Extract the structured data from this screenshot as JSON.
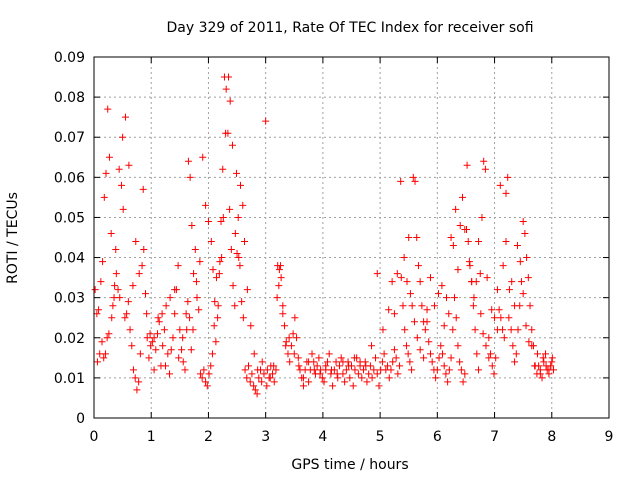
{
  "chart_data": {
    "type": "scatter",
    "title": "Day 329 of 2011, Rate Of TEC Index for receiver sofi",
    "xlabel": "GPS time / hours",
    "ylabel": "ROTI / TECUs",
    "xlim": [
      0,
      9
    ],
    "ylim": [
      0,
      0.09
    ],
    "x_ticks": [
      0,
      1,
      2,
      3,
      4,
      5,
      6,
      7,
      8,
      9
    ],
    "x_tick_labels": [
      "0",
      "1",
      "2",
      "3",
      "4",
      "5",
      "6",
      "7",
      "8",
      "9"
    ],
    "y_ticks": [
      0,
      0.01,
      0.02,
      0.03,
      0.04,
      0.05,
      0.06,
      0.07,
      0.08,
      0.09
    ],
    "y_tick_labels": [
      "0",
      "0.01",
      "0.02",
      "0.03",
      "0.04",
      "0.05",
      "0.06",
      "0.07",
      "0.08",
      "0.09"
    ],
    "grid": true,
    "marker": "plus",
    "series_color": "#ff0000",
    "series": [
      {
        "name": "ROTI",
        "x": [
          0.02,
          0.05,
          0.08,
          0.12,
          0.15,
          0.18,
          0.21,
          0.24,
          0.27,
          0.3,
          0.33,
          0.36,
          0.39,
          0.42,
          0.45,
          0.48,
          0.51,
          0.54,
          0.57,
          0.6,
          0.63,
          0.66,
          0.69,
          0.72,
          0.75,
          0.78,
          0.81,
          0.84,
          0.87,
          0.9,
          0.93,
          0.96,
          0.99,
          1.02,
          1.05,
          1.08,
          1.11,
          1.14,
          1.17,
          1.2,
          1.23,
          1.26,
          1.29,
          1.32,
          1.35,
          1.38,
          1.41,
          1.44,
          1.47,
          1.5,
          1.53,
          1.56,
          1.59,
          1.62,
          1.65,
          1.68,
          1.71,
          1.74,
          1.77,
          1.8,
          1.83,
          1.86,
          1.89,
          1.92,
          1.95,
          1.98,
          2.01,
          2.04,
          2.07,
          2.1,
          2.13,
          2.16,
          2.19,
          2.22,
          2.25,
          2.28,
          2.31,
          2.34,
          2.37,
          2.4,
          2.43,
          2.46,
          2.49,
          2.52,
          2.55,
          2.58,
          2.61,
          2.64,
          2.67,
          2.7,
          2.73,
          2.76,
          2.79,
          2.82,
          2.85,
          2.88,
          2.91,
          2.94,
          2.97,
          3.0,
          3.03,
          3.06,
          3.09,
          3.12,
          3.15,
          3.18,
          3.21,
          3.24,
          3.27,
          3.3,
          3.33,
          3.36,
          3.39,
          3.42,
          3.45,
          3.48,
          3.51,
          3.54,
          3.57,
          3.6,
          3.63,
          3.66,
          3.69,
          3.72,
          3.75,
          3.78,
          3.81,
          3.84,
          3.87,
          3.9,
          3.93,
          3.96,
          3.99,
          4.02,
          4.05,
          4.08,
          4.11,
          4.14,
          4.17,
          4.2,
          4.23,
          4.26,
          4.29,
          4.32,
          4.35,
          4.38,
          4.41,
          4.44,
          4.47,
          4.5,
          4.53,
          4.56,
          4.59,
          4.62,
          4.65,
          4.68,
          4.71,
          4.74,
          4.77,
          4.8,
          4.83,
          4.86,
          4.89,
          4.92,
          4.95,
          4.98,
          5.01,
          5.04,
          5.07,
          5.1,
          5.13,
          5.16,
          5.19,
          5.22,
          5.25,
          5.28,
          5.31,
          5.34,
          5.37,
          5.4,
          5.43,
          5.46,
          5.49,
          5.52,
          5.55,
          5.58,
          5.61,
          5.64,
          5.67,
          5.7,
          5.73,
          5.76,
          5.79,
          5.82,
          5.85,
          5.88,
          5.91,
          5.94,
          5.97,
          6.0,
          6.03,
          6.06,
          6.09,
          6.12,
          6.15,
          6.18,
          6.21,
          6.24,
          6.27,
          6.3,
          6.33,
          6.36,
          6.39,
          6.42,
          6.45,
          6.48,
          6.51,
          6.54,
          6.57,
          6.6,
          6.63,
          6.66,
          6.69,
          6.72,
          6.75,
          6.78,
          6.81,
          6.84,
          6.87,
          6.9,
          6.93,
          6.96,
          6.99,
          7.02,
          7.05,
          7.08,
          7.11,
          7.14,
          7.17,
          7.2,
          7.23,
          7.26,
          7.29,
          7.32,
          7.35,
          7.38,
          7.41,
          7.44,
          7.47,
          7.5,
          7.53,
          7.56,
          7.59,
          7.62,
          7.65,
          7.68,
          7.71,
          7.74,
          7.77,
          7.8,
          7.83,
          7.86,
          7.89,
          7.92,
          7.95,
          7.98,
          8.01,
          8.03,
          0.06,
          0.1,
          0.14,
          0.17,
          0.2,
          0.23,
          0.26,
          0.31,
          0.35,
          0.38,
          0.44,
          0.5,
          0.55,
          0.61,
          0.68,
          0.73,
          0.79,
          0.86,
          0.92,
          0.98,
          1.05,
          1.12,
          1.19,
          1.25,
          1.33,
          1.41,
          1.48,
          1.55,
          1.61,
          1.64,
          1.67,
          1.7,
          1.73,
          1.79,
          1.85,
          1.9,
          1.95,
          2.0,
          2.05,
          2.08,
          2.11,
          2.14,
          2.17,
          2.2,
          2.23,
          2.26,
          2.3,
          2.35,
          2.38,
          2.42,
          2.47,
          2.5,
          2.53,
          2.56,
          2.6,
          2.63,
          2.68,
          2.74,
          2.8,
          2.86,
          2.93,
          3.02,
          3.08,
          3.14,
          3.2,
          3.23,
          3.26,
          3.3,
          3.35,
          3.41,
          3.5,
          3.58,
          3.66,
          3.75,
          3.85,
          3.95,
          4.05,
          4.15,
          4.25,
          4.35,
          4.45,
          4.55,
          4.65,
          4.75,
          4.85,
          4.95,
          5.05,
          5.15,
          5.21,
          5.25,
          5.3,
          5.36,
          5.42,
          5.47,
          5.5,
          5.53,
          5.56,
          5.6,
          5.65,
          5.7,
          5.76,
          5.82,
          5.88,
          5.95,
          6.02,
          6.08,
          6.12,
          6.16,
          6.2,
          6.24,
          6.28,
          6.32,
          6.36,
          6.4,
          6.44,
          6.48,
          6.52,
          6.56,
          6.6,
          6.64,
          6.68,
          6.72,
          6.76,
          6.8,
          6.85,
          6.9,
          6.95,
          7.0,
          7.05,
          7.1,
          7.15,
          7.2,
          7.25,
          7.3,
          7.35,
          7.4,
          7.45,
          7.5,
          7.55,
          7.6,
          7.65,
          7.7,
          7.75,
          7.8,
          7.85,
          7.9,
          7.95,
          8.0
        ],
        "y": [
          0.032,
          0.026,
          0.027,
          0.034,
          0.039,
          0.055,
          0.061,
          0.077,
          0.065,
          0.046,
          0.028,
          0.033,
          0.036,
          0.032,
          0.03,
          0.058,
          0.052,
          0.025,
          0.026,
          0.029,
          0.022,
          0.018,
          0.012,
          0.01,
          0.007,
          0.009,
          0.016,
          0.038,
          0.042,
          0.031,
          0.02,
          0.015,
          0.018,
          0.019,
          0.012,
          0.017,
          0.021,
          0.024,
          0.013,
          0.018,
          0.022,
          0.028,
          0.016,
          0.011,
          0.017,
          0.02,
          0.026,
          0.032,
          0.038,
          0.022,
          0.017,
          0.014,
          0.012,
          0.022,
          0.064,
          0.06,
          0.048,
          0.036,
          0.042,
          0.03,
          0.027,
          0.011,
          0.01,
          0.012,
          0.009,
          0.008,
          0.011,
          0.013,
          0.016,
          0.023,
          0.019,
          0.025,
          0.036,
          0.049,
          0.062,
          0.085,
          0.082,
          0.071,
          0.052,
          0.042,
          0.033,
          0.028,
          0.061,
          0.05,
          0.038,
          0.029,
          0.025,
          0.012,
          0.01,
          0.013,
          0.009,
          0.011,
          0.008,
          0.007,
          0.006,
          0.01,
          0.012,
          0.014,
          0.011,
          0.074,
          0.012,
          0.01,
          0.013,
          0.011,
          0.009,
          0.012,
          0.038,
          0.037,
          0.035,
          0.028,
          0.023,
          0.019,
          0.016,
          0.014,
          0.018,
          0.021,
          0.025,
          0.02,
          0.015,
          0.012,
          0.01,
          0.008,
          0.012,
          0.014,
          0.009,
          0.012,
          0.016,
          0.014,
          0.011,
          0.013,
          0.015,
          0.012,
          0.01,
          0.009,
          0.012,
          0.014,
          0.016,
          0.011,
          0.008,
          0.012,
          0.014,
          0.01,
          0.013,
          0.015,
          0.011,
          0.009,
          0.012,
          0.014,
          0.01,
          0.013,
          0.008,
          0.012,
          0.015,
          0.011,
          0.013,
          0.01,
          0.012,
          0.014,
          0.009,
          0.011,
          0.013,
          0.01,
          0.012,
          0.015,
          0.011,
          0.008,
          0.012,
          0.014,
          0.016,
          0.012,
          0.013,
          0.01,
          0.012,
          0.014,
          0.017,
          0.015,
          0.011,
          0.013,
          0.035,
          0.028,
          0.022,
          0.018,
          0.016,
          0.014,
          0.012,
          0.06,
          0.059,
          0.045,
          0.038,
          0.034,
          0.028,
          0.024,
          0.022,
          0.027,
          0.019,
          0.016,
          0.014,
          0.012,
          0.01,
          0.012,
          0.015,
          0.018,
          0.016,
          0.013,
          0.011,
          0.009,
          0.012,
          0.015,
          0.022,
          0.03,
          0.025,
          0.018,
          0.014,
          0.012,
          0.009,
          0.011,
          0.047,
          0.044,
          0.038,
          0.034,
          0.028,
          0.022,
          0.016,
          0.012,
          0.036,
          0.05,
          0.064,
          0.062,
          0.035,
          0.02,
          0.016,
          0.013,
          0.011,
          0.015,
          0.022,
          0.027,
          0.025,
          0.022,
          0.02,
          0.056,
          0.06,
          0.032,
          0.022,
          0.018,
          0.014,
          0.016,
          0.022,
          0.028,
          0.034,
          0.049,
          0.046,
          0.04,
          0.035,
          0.028,
          0.022,
          0.018,
          0.013,
          0.011,
          0.013,
          0.012,
          0.01,
          0.014,
          0.016,
          0.012,
          0.011,
          0.013,
          0.015,
          0.012,
          0.014,
          0.016,
          0.019,
          0.015,
          0.016,
          0.02,
          0.021,
          0.025,
          0.03,
          0.042,
          0.062,
          0.07,
          0.075,
          0.063,
          0.033,
          0.044,
          0.036,
          0.057,
          0.026,
          0.021,
          0.02,
          0.025,
          0.026,
          0.013,
          0.03,
          0.032,
          0.015,
          0.02,
          0.026,
          0.029,
          0.025,
          0.017,
          0.022,
          0.034,
          0.039,
          0.065,
          0.053,
          0.049,
          0.044,
          0.037,
          0.029,
          0.035,
          0.028,
          0.039,
          0.04,
          0.05,
          0.071,
          0.085,
          0.079,
          0.068,
          0.046,
          0.041,
          0.04,
          0.058,
          0.053,
          0.044,
          0.032,
          0.023,
          0.016,
          0.012,
          0.009,
          0.008,
          0.01,
          0.013,
          0.03,
          0.033,
          0.038,
          0.026,
          0.018,
          0.02,
          0.016,
          0.013,
          0.01,
          0.014,
          0.012,
          0.011,
          0.013,
          0.012,
          0.011,
          0.014,
          0.013,
          0.015,
          0.014,
          0.013,
          0.018,
          0.036,
          0.022,
          0.027,
          0.034,
          0.026,
          0.036,
          0.059,
          0.04,
          0.034,
          0.045,
          0.031,
          0.028,
          0.024,
          0.02,
          0.017,
          0.015,
          0.024,
          0.035,
          0.028,
          0.031,
          0.033,
          0.023,
          0.03,
          0.026,
          0.045,
          0.043,
          0.052,
          0.037,
          0.048,
          0.055,
          0.047,
          0.063,
          0.039,
          0.034,
          0.03,
          0.034,
          0.044,
          0.026,
          0.021,
          0.018,
          0.015,
          0.027,
          0.025,
          0.032,
          0.058,
          0.038,
          0.044,
          0.025,
          0.034,
          0.028,
          0.043,
          0.039,
          0.031,
          0.023,
          0.019,
          0.018,
          0.013,
          0.016,
          0.011,
          0.015,
          0.013,
          0.012,
          0.014
        ]
      }
    ]
  }
}
